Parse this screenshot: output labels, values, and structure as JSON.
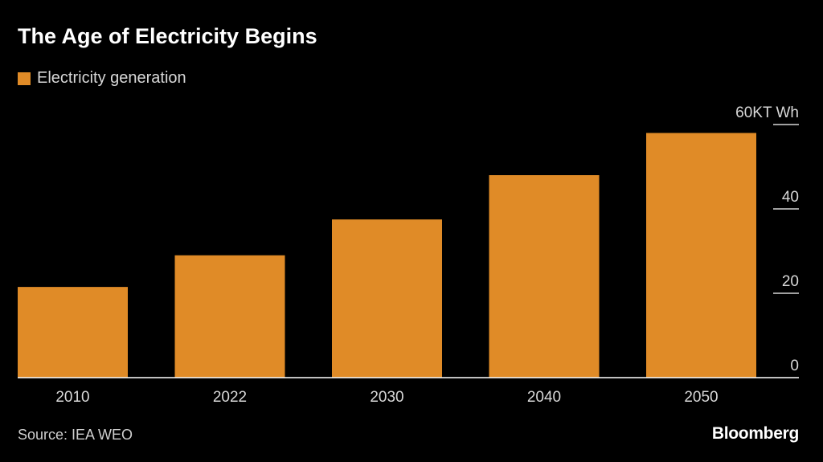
{
  "title": "The Age of Electricity Begins",
  "legend_label": "Electricity generation",
  "source": "Source: IEA WEO",
  "brand": "Bloomberg",
  "colors": {
    "bar": "#e08b27",
    "background": "#000000",
    "axis": "#ffffff"
  },
  "chart_data": {
    "type": "bar",
    "categories": [
      "2010",
      "2022",
      "2030",
      "2040",
      "2050"
    ],
    "series": [
      {
        "name": "Electricity generation",
        "values": [
          21.5,
          29,
          37.5,
          48,
          58
        ]
      }
    ],
    "ylim": [
      0,
      60
    ],
    "yticks": [
      0,
      20,
      40,
      60
    ],
    "ytick_labels": [
      "0",
      "20",
      "40",
      "60KT Wh"
    ],
    "y_axis_side": "right",
    "legend_position": "top-left",
    "grid": false
  }
}
